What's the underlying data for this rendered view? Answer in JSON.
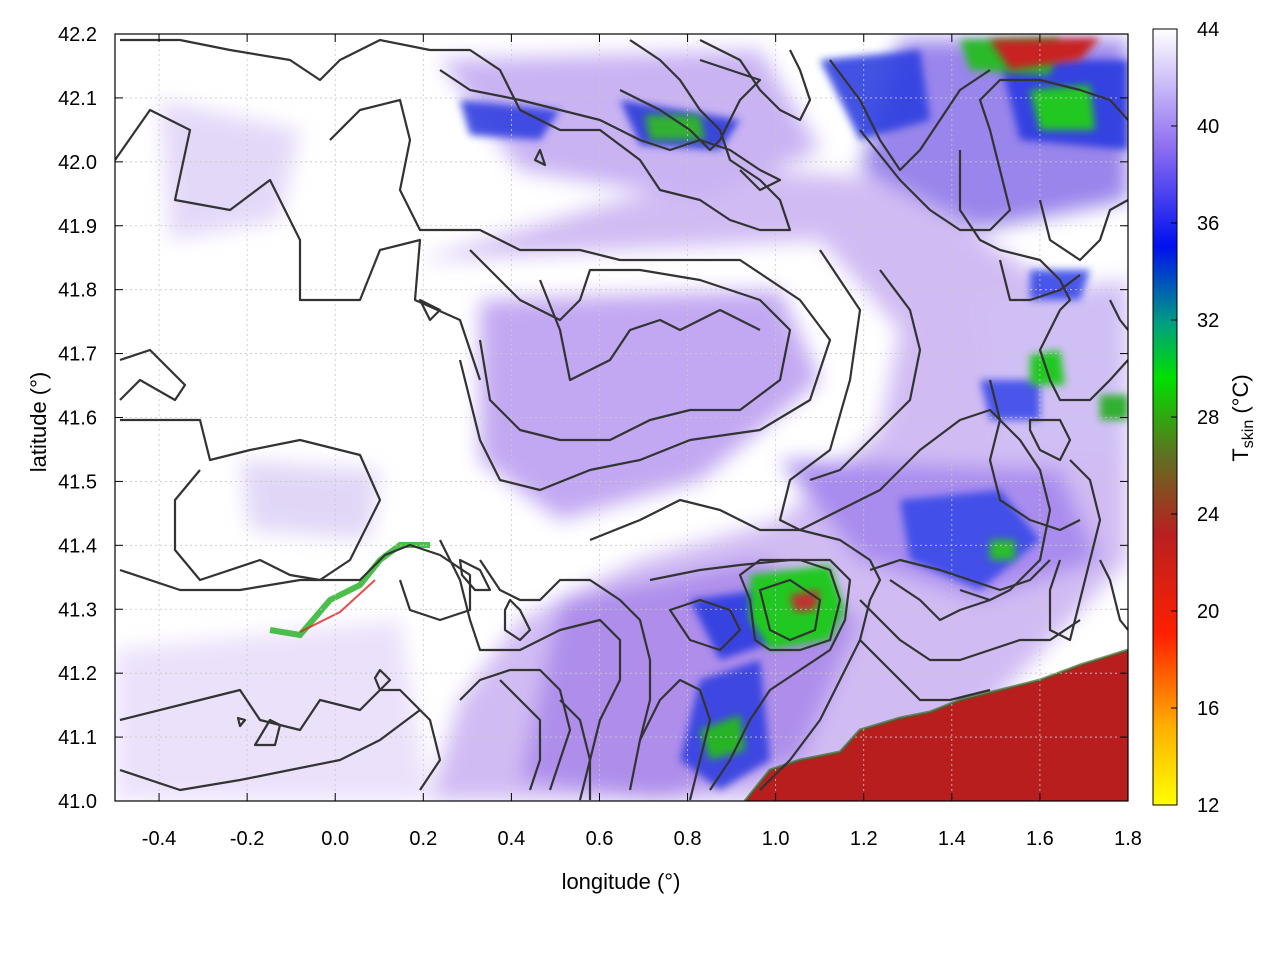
{
  "chart_data": {
    "type": "heatmap",
    "title": "",
    "xlabel": "longitude (°)",
    "ylabel": "latitude (°)",
    "xlim": [
      -0.5,
      1.8
    ],
    "ylim": [
      41.0,
      42.2
    ],
    "xticks": [
      "-0.4",
      "-0.2",
      "0.0",
      "0.2",
      "0.4",
      "0.6",
      "0.8",
      "1.0",
      "1.2",
      "1.4",
      "1.6",
      "1.8"
    ],
    "yticks": [
      "41.0",
      "41.1",
      "41.2",
      "41.3",
      "41.4",
      "41.5",
      "41.6",
      "41.7",
      "41.8",
      "41.9",
      "42.0",
      "42.1",
      "42.2"
    ],
    "grid": true,
    "colorbar": {
      "label_main": "T",
      "label_sub": "skin",
      "label_unit": " (°C)",
      "range": [
        12,
        44
      ],
      "ticks": [
        "12",
        "16",
        "20",
        "24",
        "28",
        "32",
        "36",
        "40",
        "44"
      ],
      "colormap": [
        "#ffff00",
        "#ffb000",
        "#ff3000",
        "#c02020",
        "#20a020",
        "#00e000",
        "#0000f0",
        "#9060f0",
        "#ffffff"
      ]
    },
    "overlay": "elevation contours"
  }
}
